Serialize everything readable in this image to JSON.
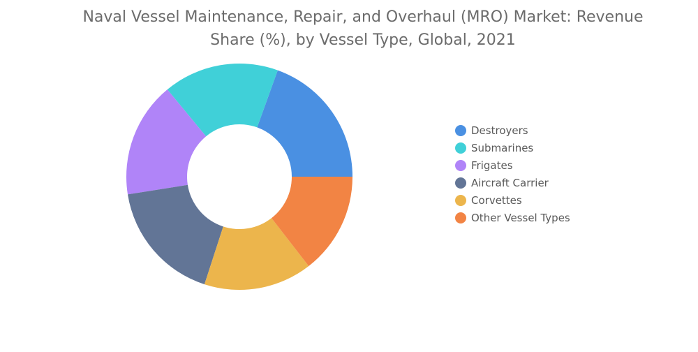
{
  "title": "Naval Vessel Maintenance, Repair, and Overhaul (MRO) Market: Revenue Share (%), by Vessel Type, Global, 2021",
  "chart_data": {
    "type": "pie",
    "variant": "donut",
    "title": "Naval Vessel Maintenance, Repair, and Overhaul (MRO) Market: Revenue Share (%), by Vessel Type, Global, 2021",
    "legend_position": "right",
    "categories": [
      "Destroyers",
      "Submarines",
      "Frigates",
      "Aircraft Carrier",
      "Corvettes",
      "Other Vessel Types"
    ],
    "values": [
      19.5,
      16.5,
      16.5,
      17.5,
      15.5,
      14.5
    ],
    "colors": [
      "#4a90e2",
      "#40d0d8",
      "#b084f8",
      "#627596",
      "#ecb54c",
      "#f28444"
    ]
  },
  "legend": [
    {
      "label": "Destroyers",
      "color": "#4a90e2"
    },
    {
      "label": "Submarines",
      "color": "#40d0d8"
    },
    {
      "label": "Frigates",
      "color": "#b084f8"
    },
    {
      "label": "Aircraft Carrier",
      "color": "#627596"
    },
    {
      "label": "Corvettes",
      "color": "#ecb54c"
    },
    {
      "label": "Other Vessel Types",
      "color": "#f28444"
    }
  ]
}
